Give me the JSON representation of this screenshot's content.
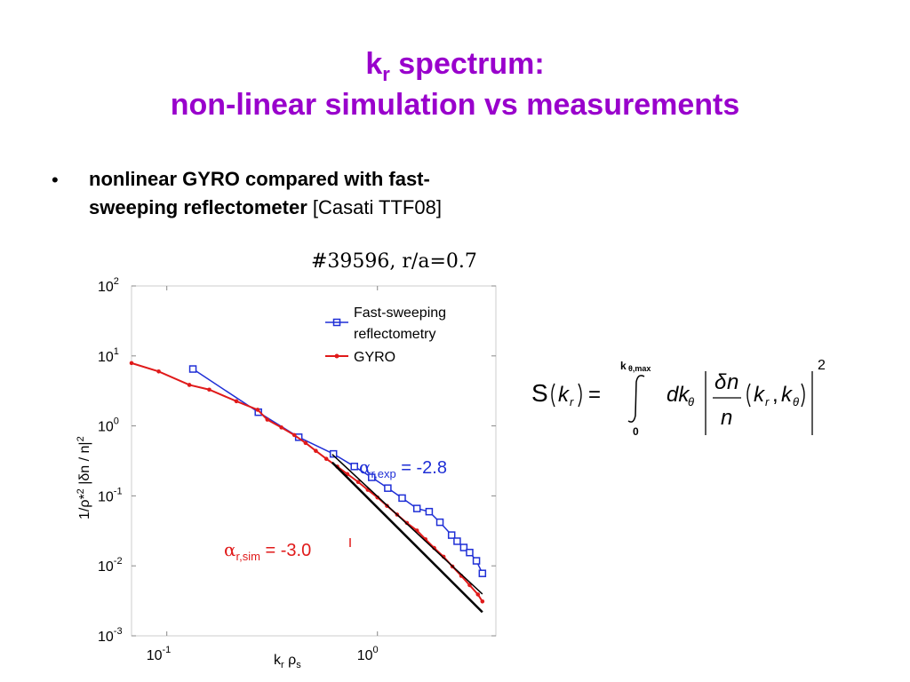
{
  "slide": {
    "title_k": "k",
    "title_sub": "r",
    "title_rest": " spectrum:",
    "title_line2": "non-linear simulation vs measurements",
    "bullet_symbol": "•",
    "bullet_bold": "nonlinear GYRO compared with fast-sweeping reflectometer",
    "bullet_normal": " [Casati TTF08]",
    "plot_title": "#39596, r/a=0.7"
  },
  "formula": {
    "lhs": "S(k_r) = ∫_0^{kθ,max} dkθ |δn/n (k_r, kθ)|²",
    "upper_limit": "k",
    "upper_limit_sub": "θ,max",
    "lower_limit": "0",
    "exponent": "2"
  },
  "chart_data": {
    "type": "line",
    "title": "#39596, r/a=0.7",
    "xlabel": "k_r ρ_s",
    "ylabel": "1/ρ*² |δn / n|²",
    "xscale": "log",
    "yscale": "log",
    "xlim": [
      0.068,
      3.65
    ],
    "ylim": [
      0.001,
      100
    ],
    "xticks": [
      {
        "value": 0.1,
        "base": "10",
        "exp": "-1"
      },
      {
        "value": 1,
        "base": "10",
        "exp": "0"
      }
    ],
    "yticks": [
      {
        "value": 100,
        "base": "10",
        "exp": "2"
      },
      {
        "value": 10,
        "base": "10",
        "exp": "1"
      },
      {
        "value": 1,
        "base": "10",
        "exp": "0"
      },
      {
        "value": 0.1,
        "base": "10",
        "exp": "-1"
      },
      {
        "value": 0.01,
        "base": "10",
        "exp": "-2"
      },
      {
        "value": 0.001,
        "base": "10",
        "exp": "-3"
      }
    ],
    "legend_position": "top-right",
    "series": [
      {
        "name": "Fast-sweeping reflectometry",
        "color": "#1f2fd6",
        "marker": "square",
        "x": [
          0.133,
          0.272,
          0.423,
          0.618,
          0.777,
          0.939,
          1.12,
          1.31,
          1.54,
          1.76,
          1.98,
          2.25,
          2.39,
          2.57,
          2.74,
          2.95,
          3.15
        ],
        "y": [
          6.5,
          1.57,
          0.689,
          0.398,
          0.263,
          0.184,
          0.129,
          0.093,
          0.066,
          0.0595,
          0.042,
          0.0275,
          0.0225,
          0.0183,
          0.0155,
          0.0118,
          0.0078
        ]
      },
      {
        "name": "GYRO",
        "color": "#e01a1a",
        "marker": "dot",
        "x": [
          0.068,
          0.0915,
          0.128,
          0.159,
          0.214,
          0.27,
          0.3,
          0.35,
          0.403,
          0.456,
          0.51,
          0.572,
          0.645,
          0.72,
          0.81,
          0.9,
          1.0,
          1.11,
          1.24,
          1.38,
          1.54,
          1.69,
          1.86,
          2.06,
          2.27,
          2.5,
          2.74,
          3.0,
          3.15
        ],
        "y": [
          7.9,
          6.0,
          3.85,
          3.3,
          2.25,
          1.7,
          1.23,
          0.95,
          0.74,
          0.57,
          0.44,
          0.338,
          0.262,
          0.205,
          0.158,
          0.122,
          0.095,
          0.072,
          0.054,
          0.041,
          0.032,
          0.024,
          0.018,
          0.0135,
          0.0098,
          0.0072,
          0.0053,
          0.0039,
          0.0031
        ]
      }
    ],
    "fits": [
      {
        "label_prefix": "α",
        "label_sub": "r,exp",
        "label_value": " = -2.8",
        "color": "#1f2fd6",
        "slope": -2.8,
        "x_range": [
          0.61,
          3.15
        ],
        "y_at_start": 0.392
      },
      {
        "label_prefix": "α",
        "label_sub": "r,sim",
        "label_value": " = -3.0",
        "color": "#e01a1a",
        "slope": -3.0,
        "x_range": [
          0.61,
          3.15
        ],
        "y_at_start": 0.3
      }
    ]
  }
}
